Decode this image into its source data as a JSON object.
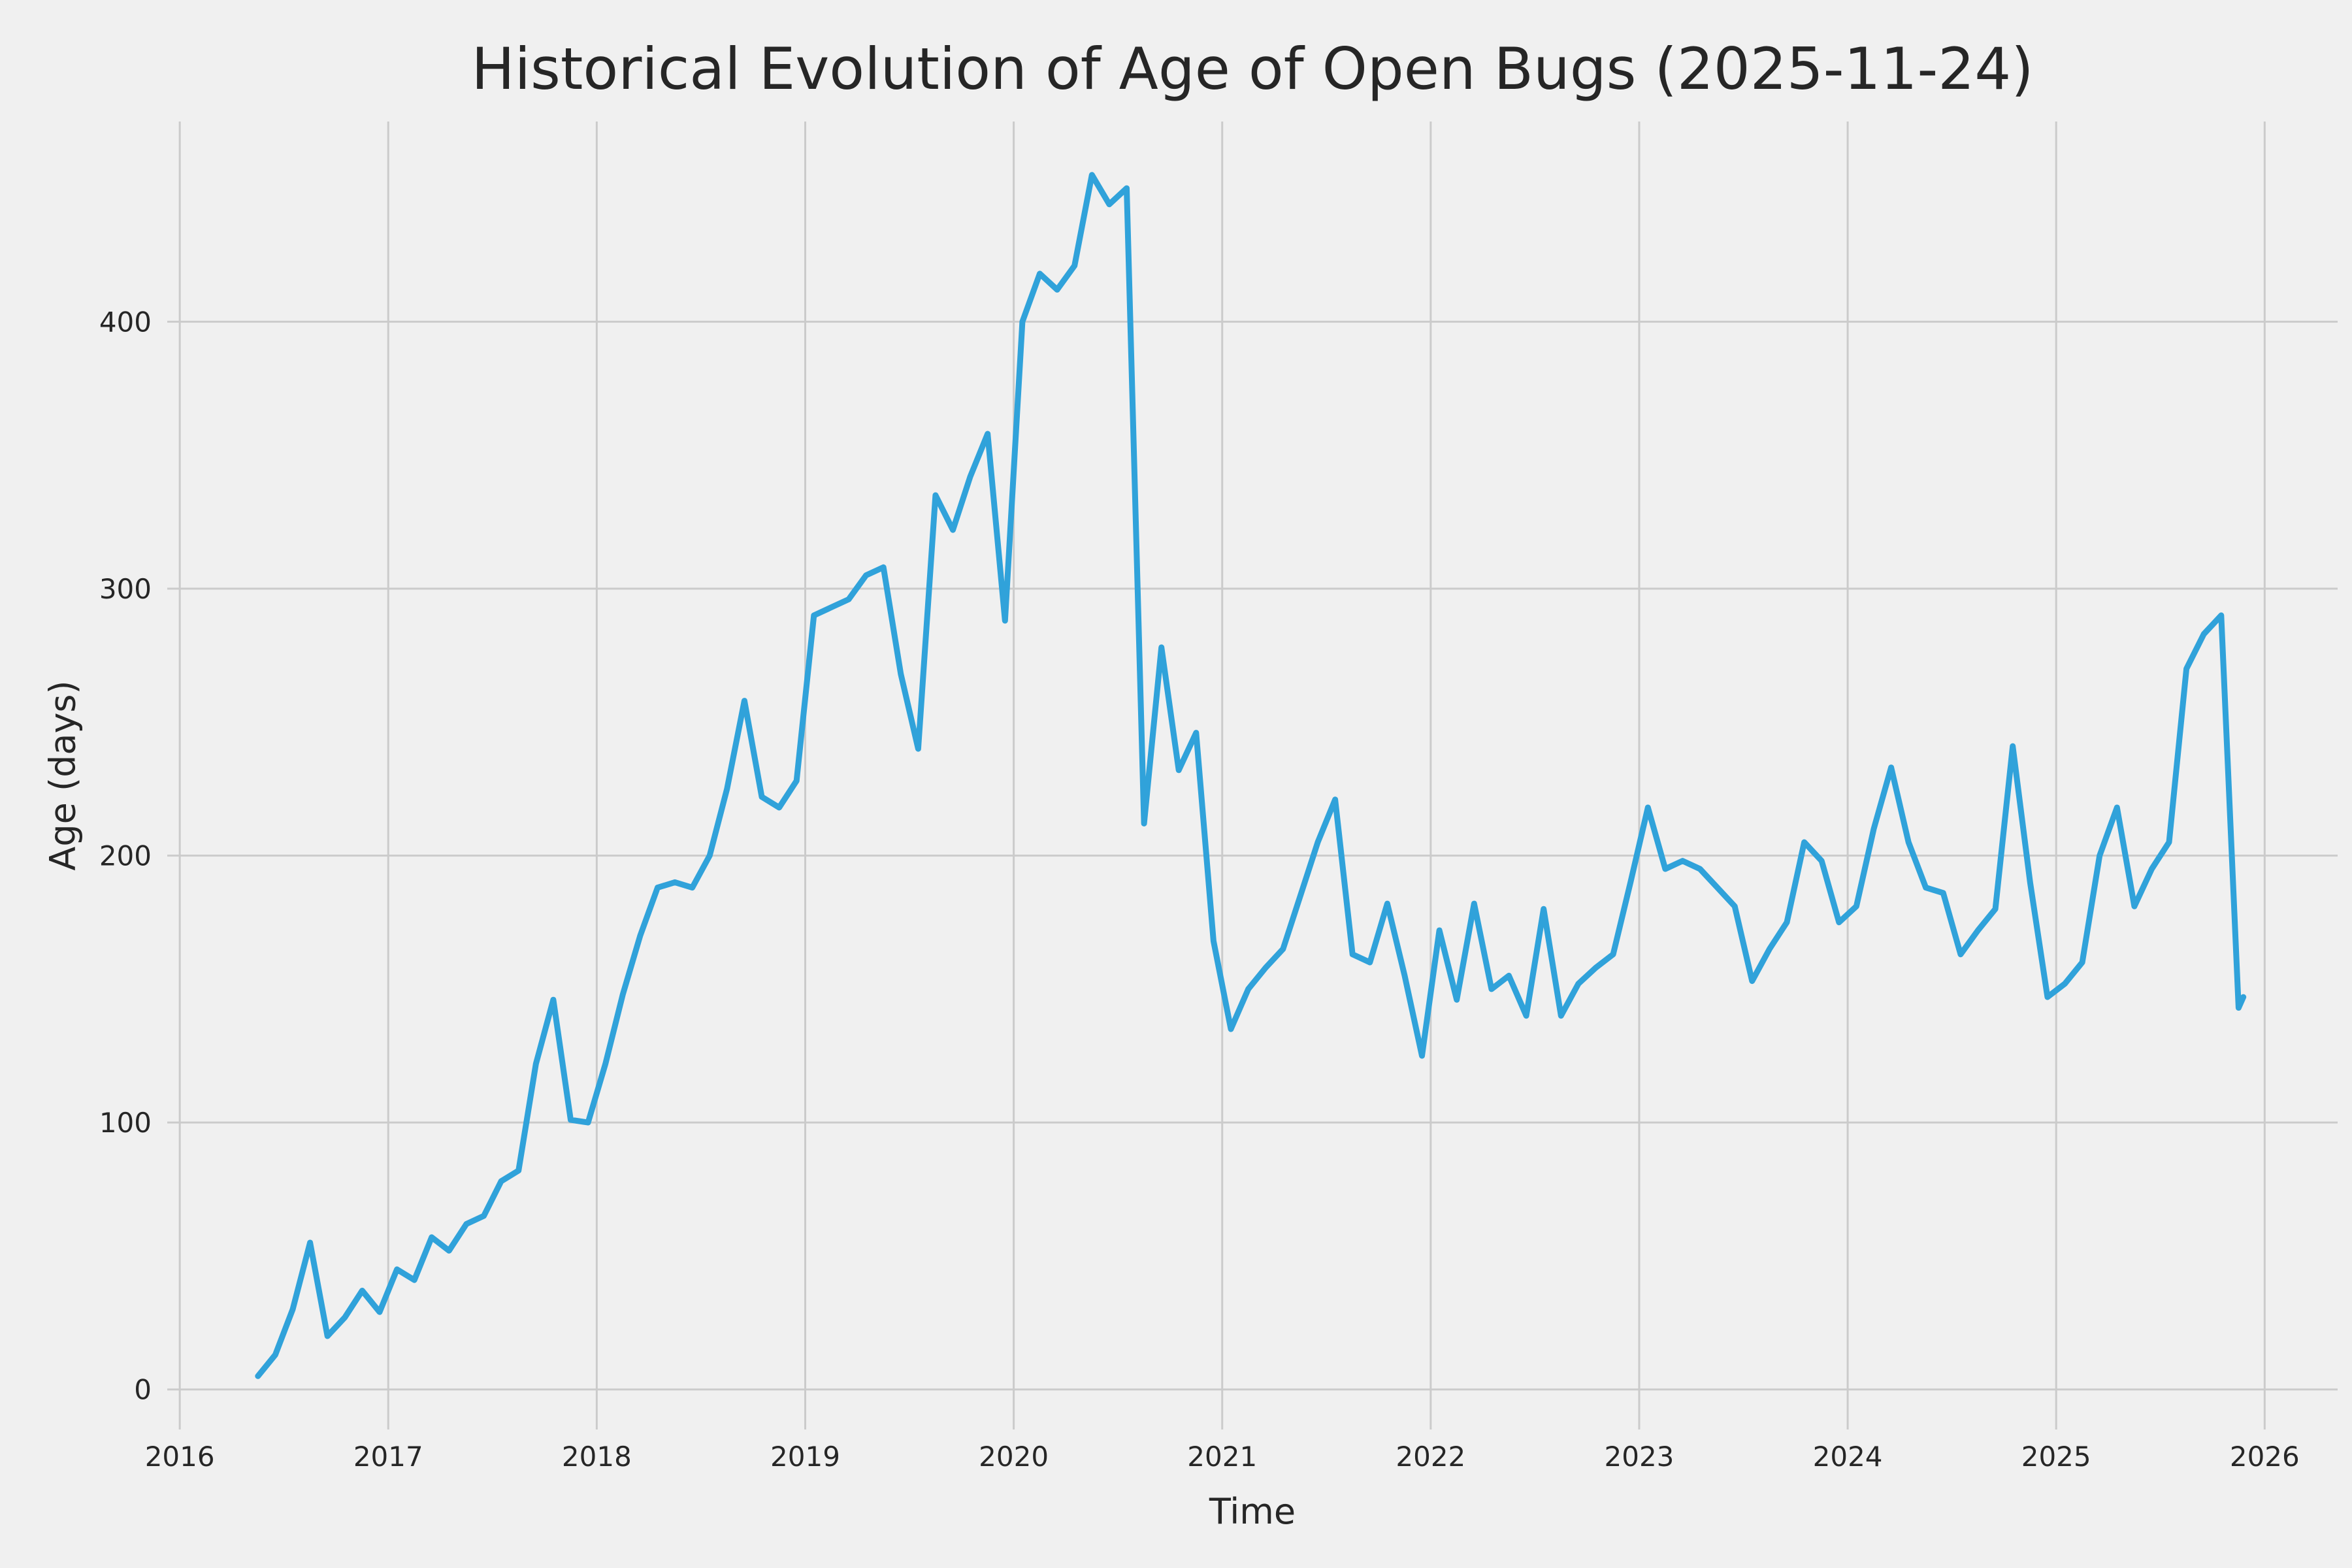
{
  "chart_data": {
    "type": "line",
    "title": "Historical Evolution of Age of Open Bugs (2025-11-24)",
    "xlabel": "Time",
    "ylabel": "Age (days)",
    "x_ticks": [
      2016,
      2017,
      2018,
      2019,
      2020,
      2021,
      2022,
      2023,
      2024,
      2025,
      2026
    ],
    "y_ticks": [
      0,
      100,
      200,
      300,
      400
    ],
    "xlim": [
      2015.94,
      2026.35
    ],
    "ylim": [
      -15,
      475
    ],
    "grid": true,
    "legend_position": "none",
    "line_color": "#30a2da",
    "background_color": "#f0f0f0",
    "grid_color": "#cbcbcb",
    "text_color": "#262626",
    "series": {
      "dates": [
        "2016-05",
        "2016-06",
        "2016-07",
        "2016-08",
        "2016-09",
        "2016-10",
        "2016-11",
        "2016-12",
        "2017-01",
        "2017-02",
        "2017-03",
        "2017-04",
        "2017-05",
        "2017-06",
        "2017-07",
        "2017-08",
        "2017-09",
        "2017-10",
        "2017-11",
        "2017-12",
        "2018-01",
        "2018-02",
        "2018-03",
        "2018-04",
        "2018-05",
        "2018-06",
        "2018-07",
        "2018-08",
        "2018-09",
        "2018-10",
        "2018-11",
        "2018-12",
        "2019-01",
        "2019-02",
        "2019-03",
        "2019-04",
        "2019-05",
        "2019-06",
        "2019-07",
        "2019-08",
        "2019-09",
        "2019-10",
        "2019-11",
        "2019-12",
        "2020-01",
        "2020-02",
        "2020-03",
        "2020-04",
        "2020-05",
        "2020-06",
        "2020-07",
        "2020-08",
        "2020-09",
        "2020-10",
        "2020-11",
        "2020-12",
        "2021-01",
        "2021-02",
        "2021-03",
        "2021-04",
        "2021-05",
        "2021-06",
        "2021-07",
        "2021-08",
        "2021-09",
        "2021-10",
        "2021-11",
        "2021-12",
        "2022-01",
        "2022-02",
        "2022-03",
        "2022-04",
        "2022-05",
        "2022-06",
        "2022-07",
        "2022-08",
        "2022-09",
        "2022-10",
        "2022-11",
        "2022-12",
        "2023-01",
        "2023-02",
        "2023-03",
        "2023-04",
        "2023-05",
        "2023-06",
        "2023-07",
        "2023-08",
        "2023-09",
        "2023-10",
        "2023-11",
        "2023-12",
        "2024-01",
        "2024-02",
        "2024-03",
        "2024-04",
        "2024-05",
        "2024-06",
        "2024-07",
        "2024-08",
        "2024-09",
        "2024-10",
        "2024-11",
        "2024-12",
        "2025-01",
        "2025-02",
        "2025-03",
        "2025-04",
        "2025-05",
        "2025-06",
        "2025-07",
        "2025-08",
        "2025-09",
        "2025-10",
        "2025-11",
        "2025-11-24"
      ],
      "values": [
        5,
        13,
        30,
        55,
        20,
        27,
        37,
        29,
        45,
        41,
        57,
        52,
        62,
        65,
        78,
        82,
        122,
        146,
        101,
        100,
        122,
        148,
        170,
        188,
        190,
        188,
        200,
        225,
        258,
        222,
        218,
        228,
        290,
        293,
        296,
        305,
        308,
        268,
        240,
        335,
        322,
        342,
        358,
        288,
        400,
        418,
        412,
        421,
        455,
        444,
        450,
        212,
        278,
        232,
        246,
        168,
        135,
        150,
        158,
        165,
        185,
        205,
        221,
        163,
        160,
        182,
        155,
        125,
        172,
        146,
        182,
        150,
        155,
        140,
        180,
        140,
        152,
        158,
        163,
        190,
        218,
        195,
        198,
        195,
        188,
        181,
        153,
        165,
        175,
        205,
        198,
        175,
        181,
        210,
        233,
        205,
        188,
        186,
        163,
        172,
        180,
        241,
        190,
        147,
        152,
        160,
        200,
        218,
        181,
        195,
        205,
        270,
        283,
        290,
        143,
        147
      ]
    }
  }
}
